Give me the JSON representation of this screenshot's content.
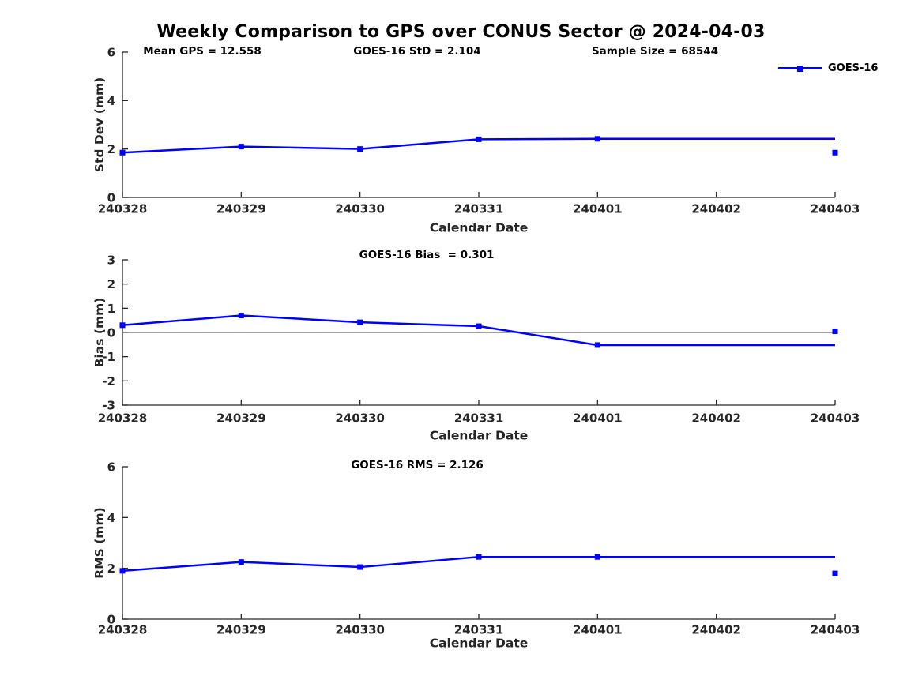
{
  "figure": {
    "title": "Weekly Comparison to GPS over CONUS Sector @ 2024-04-03",
    "background_color": "#ffffff",
    "accent_color": "#0000ff",
    "axis_color": "#262626",
    "zero_line_color": "#808080"
  },
  "legend": {
    "label": "GOES-16",
    "marker": "filled-square",
    "line_color": "#0000ff",
    "position": "top-right"
  },
  "chart_data": [
    {
      "type": "line",
      "ylabel": "Std Dev (mm)",
      "xlabel": "Calendar Date",
      "categories": [
        "240328",
        "240329",
        "240330",
        "240331",
        "240401",
        "240402",
        "240403"
      ],
      "ylim": [
        0,
        6
      ],
      "yticks": [
        0,
        2,
        4,
        6
      ],
      "grid": false,
      "zero_line": false,
      "annotations": [
        "Mean GPS = 12.558",
        "GOES-16 StD = 2.104",
        "Sample Size = 68544"
      ],
      "series": [
        {
          "name": "GOES-16",
          "color": "#0000ff",
          "values": [
            1.85,
            2.1,
            2.0,
            2.4,
            2.42,
            2.42,
            2.42
          ],
          "markers": [
            true,
            true,
            true,
            true,
            true,
            false,
            false
          ]
        },
        {
          "name": "GOES-16 latest day point",
          "color": "#0000ff",
          "points": [
            {
              "x": "240403",
              "y": 1.85
            }
          ]
        }
      ]
    },
    {
      "type": "line",
      "ylabel": "Bias (mm)",
      "xlabel": "Calendar Date",
      "categories": [
        "240328",
        "240329",
        "240330",
        "240331",
        "240401",
        "240402",
        "240403"
      ],
      "ylim": [
        -3,
        3
      ],
      "yticks": [
        3,
        2,
        1,
        0,
        -1,
        -2,
        -3
      ],
      "grid": false,
      "zero_line": true,
      "annotations": [
        "GOES-16 Bias  = 0.301"
      ],
      "series": [
        {
          "name": "GOES-16",
          "color": "#0000ff",
          "values": [
            0.3,
            0.7,
            0.42,
            0.26,
            -0.52,
            -0.52,
            -0.52
          ],
          "markers": [
            true,
            true,
            true,
            true,
            true,
            false,
            false
          ]
        },
        {
          "name": "GOES-16 latest day point",
          "color": "#0000ff",
          "points": [
            {
              "x": "240403",
              "y": 0.05
            }
          ]
        }
      ]
    },
    {
      "type": "line",
      "ylabel": "RMS (mm)",
      "xlabel": "Calendar Date",
      "categories": [
        "240328",
        "240329",
        "240330",
        "240331",
        "240401",
        "240402",
        "240403"
      ],
      "ylim": [
        0,
        6
      ],
      "yticks": [
        0,
        2,
        4,
        6
      ],
      "grid": false,
      "zero_line": false,
      "annotations": [
        "GOES-16 RMS = 2.126"
      ],
      "series": [
        {
          "name": "GOES-16",
          "color": "#0000ff",
          "values": [
            1.9,
            2.25,
            2.05,
            2.45,
            2.45,
            2.45,
            2.45
          ],
          "markers": [
            true,
            true,
            true,
            true,
            true,
            false,
            false
          ]
        },
        {
          "name": "GOES-16 latest day point",
          "color": "#0000ff",
          "points": [
            {
              "x": "240403",
              "y": 1.8
            }
          ]
        }
      ]
    }
  ]
}
